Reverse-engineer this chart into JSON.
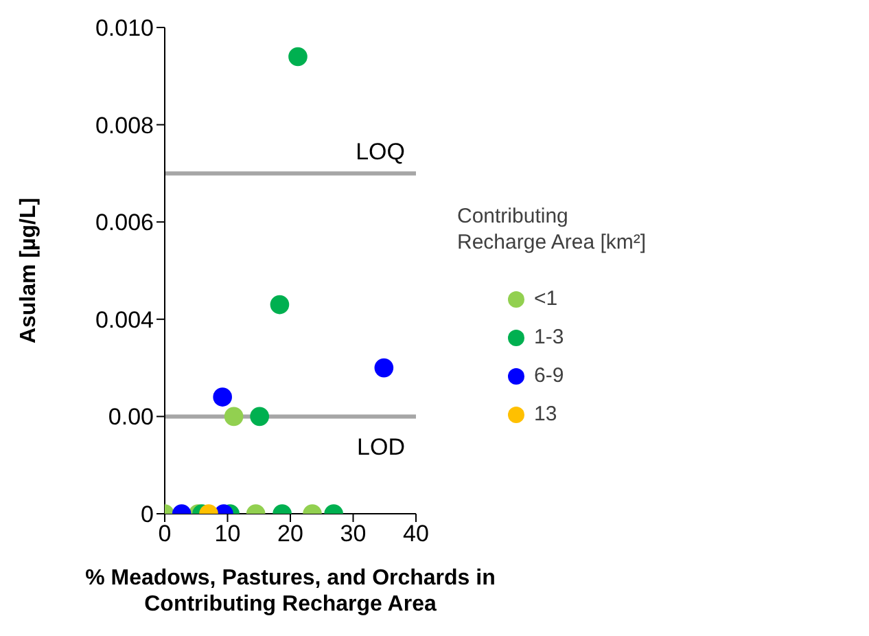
{
  "chart_data": {
    "type": "scatter",
    "xlabel": "% Meadows, Pastures, and Orchards in Contributing Recharge Area",
    "ylabel": "Asulam [µg/L]",
    "legend_title": "Contributing Recharge Area [km²]",
    "xlim": [
      0,
      40
    ],
    "xticks": [
      0,
      10,
      20,
      30,
      40
    ],
    "ylim": [
      0,
      0.01
    ],
    "yticks": [
      {
        "value": 0,
        "label": "0"
      },
      {
        "value": 0.002,
        "label": "0.00"
      },
      {
        "value": 0.004,
        "label": "0.004"
      },
      {
        "value": 0.006,
        "label": "0.006"
      },
      {
        "value": 0.008,
        "label": "0.008"
      },
      {
        "value": 0.01,
        "label": "0.010"
      }
    ],
    "series": [
      {
        "name": "<1",
        "color": "#92d050",
        "x": [
          0,
          5.3,
          11.0,
          14.5,
          23.5
        ],
        "values": [
          0,
          0,
          0.002,
          0,
          0
        ]
      },
      {
        "name": "1-3",
        "color": "#00b050",
        "x": [
          21.2,
          18.3,
          15.1,
          5.9,
          10.4,
          18.7,
          26.9
        ],
        "values": [
          0.0094,
          0.0043,
          0.002,
          0,
          0,
          0,
          0
        ]
      },
      {
        "name": "6-9",
        "color": "#0000ff",
        "x": [
          2.7,
          9.2,
          9.4,
          34.9
        ],
        "values": [
          0,
          0.0024,
          0,
          0.003
        ]
      },
      {
        "name": "13",
        "color": "#ffc000",
        "x": [
          7.0
        ],
        "values": [
          0
        ]
      }
    ],
    "ref_lines": [
      {
        "axis": "y",
        "value": 0.007,
        "label": "LOQ",
        "color": "#a6a6a6"
      },
      {
        "axis": "y",
        "value": 0.002,
        "label": "LOD",
        "color": "#a6a6a6"
      }
    ],
    "grid": false,
    "legend": "right",
    "marker": "circle"
  }
}
